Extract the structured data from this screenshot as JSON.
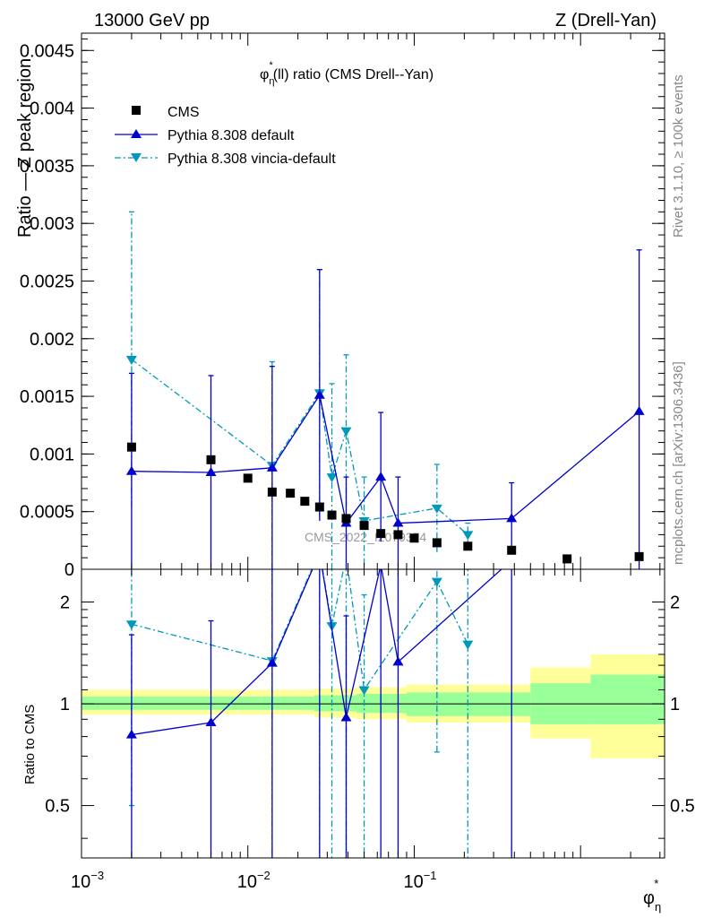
{
  "header": {
    "left": "13000 GeV pp",
    "right": "Z (Drell-Yan)"
  },
  "side_text": {
    "rivet": "Rivet 3.1.10, ≥ 100k events",
    "mcplots": "mcplots.cern.ch [arXiv:1306.3436]"
  },
  "watermark": "CMS_2022_I2079374",
  "colors": {
    "cms": "#000000",
    "default": "#0000cc",
    "vincia": "#0099bb",
    "band_inner": "#99ff99",
    "band_outer": "#ffff99"
  },
  "chart_data": [
    {
      "type": "scatter",
      "panel": "top",
      "title_main": "φ",
      "title_sub": "η",
      "title_sup": "*",
      "title_rest": "(ll) ratio (CMS Drell--Yan)",
      "ylabel": "Ratio — Z peak region",
      "x_scale": "log",
      "xlim": [
        0.001,
        3.2
      ],
      "ylim": [
        0,
        0.00465
      ],
      "yticks": [
        0,
        0.0005,
        0.001,
        0.0015,
        0.002,
        0.0025,
        0.003,
        0.0035,
        0.004,
        0.0045
      ],
      "ytick_labels": [
        "0",
        "0.0005",
        "0.001",
        "0.0015",
        "0.002",
        "0.0025",
        "0.003",
        "0.0035",
        "0.004",
        "0.0045"
      ],
      "legend_position": "top-left",
      "series": [
        {
          "name": "CMS",
          "style": "markers",
          "x": [
            0.002,
            0.006,
            0.01,
            0.014,
            0.018,
            0.022,
            0.027,
            0.032,
            0.039,
            0.05,
            0.063,
            0.08,
            0.1,
            0.137,
            0.21,
            0.385,
            0.83,
            2.25
          ],
          "y": [
            0.00106,
            0.00095,
            0.00079,
            0.00067,
            0.00066,
            0.00059,
            0.00054,
            0.00047,
            0.00044,
            0.00038,
            0.00031,
            0.0003,
            0.00027,
            0.00023,
            0.0002,
            0.000165,
            9e-05,
            0.00011
          ]
        },
        {
          "name": "Pythia 8.308 default",
          "style": "line-triangle-up",
          "x": [
            0.002,
            0.006,
            0.014,
            0.027,
            0.039,
            0.063,
            0.08,
            0.385,
            2.25
          ],
          "y": [
            0.00085,
            0.00084,
            0.00088,
            0.00151,
            0.0004,
            0.0008,
            0.0004,
            0.00044,
            0.00137
          ],
          "yerr": [
            0.00085,
            0.00084,
            0.00088,
            0.00109,
            0.0004,
            0.00056,
            0.0004,
            0.00031,
            0.0014
          ]
        },
        {
          "name": "Pythia 8.308 vincia-default",
          "style": "dashdot-triangle-down",
          "x": [
            0.002,
            0.014,
            0.027,
            0.032,
            0.039,
            0.05,
            0.137,
            0.21
          ],
          "y": [
            0.00182,
            0.0009,
            0.00153,
            0.0008,
            0.0012,
            0.00042,
            0.00053,
            0.0003
          ],
          "yerr": [
            0.00128,
            0.0009,
            0.00107,
            0.00081,
            0.00066,
            0.00038,
            0.00038,
            0.0001
          ]
        }
      ]
    },
    {
      "type": "line",
      "panel": "bottom",
      "ylabel": "Ratio to CMS",
      "xlabel_main": "φ",
      "xlabel_sub": "η",
      "xlabel_sup": "*",
      "x_scale": "log",
      "y_scale": "log",
      "xlim": [
        0.001,
        3.2
      ],
      "ylim": [
        0.35,
        2.5
      ],
      "yticks": [
        0.5,
        1,
        2
      ],
      "ytick_labels": [
        "0.5",
        "1",
        "2"
      ],
      "xtick_labels": [
        "10",
        "10",
        "10"
      ],
      "xtick_exponents": [
        "−3",
        "−2",
        "−1"
      ],
      "xticks": [
        0.001,
        0.01,
        0.1
      ],
      "reference_band": {
        "edges": [
          0.001,
          0.012,
          0.025,
          0.045,
          0.07,
          0.09,
          0.5,
          1.15,
          3.2
        ],
        "inner": [
          [
            0.96,
            1.05
          ],
          [
            0.96,
            1.05
          ],
          [
            0.95,
            1.06
          ],
          [
            0.94,
            1.07
          ],
          [
            0.94,
            1.07
          ],
          [
            0.92,
            1.08
          ],
          [
            0.87,
            1.15
          ],
          [
            0.87,
            1.22
          ]
        ],
        "outer": [
          [
            0.93,
            1.1
          ],
          [
            0.93,
            1.1
          ],
          [
            0.91,
            1.11
          ],
          [
            0.9,
            1.12
          ],
          [
            0.9,
            1.12
          ],
          [
            0.88,
            1.14
          ],
          [
            0.79,
            1.28
          ],
          [
            0.69,
            1.4
          ]
        ]
      },
      "series": [
        {
          "name": "Pythia 8.308 default",
          "x": [
            0.002,
            0.006,
            0.014,
            0.027,
            0.039,
            0.063,
            0.08,
            0.385
          ],
          "y": [
            0.81,
            0.88,
            1.32,
            2.8,
            0.91,
            2.58,
            1.33,
            2.66
          ],
          "ylo": [
            0.3,
            0.3,
            0.3,
            0.3,
            0.3,
            0.3,
            0.3,
            0.3
          ],
          "yhi": [
            1.6,
            1.76,
            2.6,
            4,
            1.82,
            4,
            2.66,
            4.5
          ]
        },
        {
          "name": "Pythia 8.308 vincia-default",
          "x": [
            0.002,
            0.014,
            0.027,
            0.032,
            0.039,
            0.05,
            0.137,
            0.21
          ],
          "y": [
            1.72,
            1.34,
            2.83,
            1.7,
            2.73,
            1.1,
            2.3,
            1.5
          ],
          "ylo": [
            0.5,
            0.3,
            0.3,
            0.3,
            0.3,
            0.3,
            0.72,
            0.3
          ],
          "yhi": [
            2.9,
            2.7,
            4,
            3.4,
            4.3,
            2.1,
            3.9,
            2.5
          ]
        }
      ]
    }
  ]
}
